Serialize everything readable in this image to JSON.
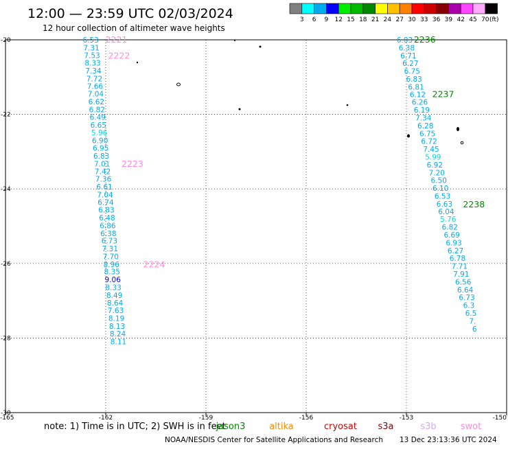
{
  "title": "12:00 — 23:59 UTC 02/03/2024",
  "subtitle": "12 hour collection of altimeter wave heights",
  "footer": {
    "note": "note:  1) Time is in UTC; 2) SWH is in feet",
    "credit": "NOAA/NESDIS Center for Satellite Applications and Research",
    "timestamp": "13 Dec 23:13:36 UTC 2024"
  },
  "colorbar": {
    "unit": "(ft)",
    "colors": [
      "#808080",
      "#00ffff",
      "#00aaee",
      "#0000ff",
      "#00ee00",
      "#00bb00",
      "#008800",
      "#ffff00",
      "#ffc000",
      "#ff8000",
      "#ff0000",
      "#cc0000",
      "#880000",
      "#aa00aa",
      "#ff44ff",
      "#ffaaff",
      "#000000"
    ],
    "labels": [
      "3",
      "6",
      "9",
      "12",
      "15",
      "18",
      "21",
      "24",
      "27",
      "30",
      "33",
      "36",
      "39",
      "42",
      "45",
      "70"
    ]
  },
  "satellites": [
    {
      "name": "jason3",
      "color": "#008800"
    },
    {
      "name": "altika",
      "color": "#ff8800"
    },
    {
      "name": "cryosat",
      "color": "#cc0000"
    },
    {
      "name": "s3a",
      "color": "#880000"
    },
    {
      "name": "s3b",
      "color": "#ccaaff"
    },
    {
      "name": "swot",
      "color": "#ff88dd"
    }
  ],
  "chart_data": {
    "type": "scatter",
    "title": "12:00 — 23:59 UTC 02/03/2024",
    "subtitle": "12 hour collection of altimeter wave heights",
    "xlim": [
      -165,
      -150
    ],
    "ylim": [
      -30,
      -20
    ],
    "xticks": [
      "-165",
      "-162",
      "-159",
      "-156",
      "-153",
      "-150"
    ],
    "yticks": [
      "-20",
      "-22",
      "-24",
      "-26",
      "-28",
      "-30"
    ],
    "xtick_values": [
      -165,
      -162,
      -159,
      -156,
      -153,
      -150
    ],
    "ytick_values": [
      -20,
      -22,
      -24,
      -26,
      -28,
      -30
    ],
    "grid": "dotted",
    "series": [
      {
        "name": "swot",
        "color": "#ff88dd",
        "points": [
          {
            "x": -162.45,
            "y": -20.0,
            "v": "6.53",
            "c": "#00aaee"
          },
          {
            "x": -162.43,
            "y": -20.21,
            "v": "7.31",
            "c": "#00aaee"
          },
          {
            "x": -162.41,
            "y": -20.41,
            "v": "7.53",
            "c": "#00aaee"
          },
          {
            "x": -162.39,
            "y": -20.62,
            "v": "8.33",
            "c": "#00aaee"
          },
          {
            "x": -162.37,
            "y": -20.83,
            "v": "7.34",
            "c": "#00aaee"
          },
          {
            "x": -162.34,
            "y": -21.04,
            "v": "7.72",
            "c": "#00aaee"
          },
          {
            "x": -162.32,
            "y": -21.24,
            "v": "7.66",
            "c": "#00aaee"
          },
          {
            "x": -162.3,
            "y": -21.45,
            "v": "7.04",
            "c": "#00aaee"
          },
          {
            "x": -162.28,
            "y": -21.66,
            "v": "6.62",
            "c": "#00aaee"
          },
          {
            "x": -162.26,
            "y": -21.87,
            "v": "6.82",
            "c": "#00aaee"
          },
          {
            "x": -162.24,
            "y": -22.07,
            "v": "6.49",
            "c": "#00aaee"
          },
          {
            "x": -162.22,
            "y": -22.28,
            "v": "6.65",
            "c": "#00aaee"
          },
          {
            "x": -162.19,
            "y": -22.49,
            "v": "5.96",
            "c": "#00dddd"
          },
          {
            "x": -162.17,
            "y": -22.7,
            "v": "6.90",
            "c": "#00aaee"
          },
          {
            "x": -162.15,
            "y": -22.9,
            "v": "6.95",
            "c": "#00aaee"
          },
          {
            "x": -162.13,
            "y": -23.11,
            "v": "6.83",
            "c": "#00aaee"
          },
          {
            "x": -162.11,
            "y": -23.32,
            "v": "7.01",
            "c": "#00aaee"
          },
          {
            "x": -162.09,
            "y": -23.53,
            "v": "7.42",
            "c": "#00aaee"
          },
          {
            "x": -162.07,
            "y": -23.73,
            "v": "7.36",
            "c": "#00aaee"
          },
          {
            "x": -162.04,
            "y": -23.94,
            "v": "6.61",
            "c": "#00aaee"
          },
          {
            "x": -162.02,
            "y": -24.15,
            "v": "7.04",
            "c": "#00aaee"
          },
          {
            "x": -162.0,
            "y": -24.36,
            "v": "6.74",
            "c": "#00aaee"
          },
          {
            "x": -161.98,
            "y": -24.56,
            "v": "6.83",
            "c": "#00aaee"
          },
          {
            "x": -161.96,
            "y": -24.77,
            "v": "6.48",
            "c": "#00aaee"
          },
          {
            "x": -161.94,
            "y": -24.98,
            "v": "6.86",
            "c": "#00aaee"
          },
          {
            "x": -161.92,
            "y": -25.19,
            "v": "6.38",
            "c": "#00aaee"
          },
          {
            "x": -161.89,
            "y": -25.39,
            "v": "6.73",
            "c": "#00aaee"
          },
          {
            "x": -161.87,
            "y": -25.6,
            "v": "7.31",
            "c": "#00aaee"
          },
          {
            "x": -161.85,
            "y": -25.81,
            "v": "7.70",
            "c": "#00aaee"
          },
          {
            "x": -161.83,
            "y": -26.02,
            "v": "8.96",
            "c": "#00aaee"
          },
          {
            "x": -161.81,
            "y": -26.22,
            "v": "8.35",
            "c": "#00aaee"
          },
          {
            "x": -161.79,
            "y": -26.43,
            "v": "9.06",
            "c": "#0000ff"
          },
          {
            "x": -161.77,
            "y": -26.64,
            "v": "8.33",
            "c": "#00aaee"
          },
          {
            "x": -161.74,
            "y": -26.85,
            "v": "8.49",
            "c": "#00aaee"
          },
          {
            "x": -161.72,
            "y": -27.05,
            "v": "8.64",
            "c": "#00aaee"
          },
          {
            "x": -161.7,
            "y": -27.26,
            "v": "7.63",
            "c": "#00aaee"
          },
          {
            "x": -161.68,
            "y": -27.47,
            "v": "8.19",
            "c": "#00aaee"
          },
          {
            "x": -161.66,
            "y": -27.68,
            "v": "8.13",
            "c": "#00aaee"
          },
          {
            "x": -161.64,
            "y": -27.88,
            "v": "8.24",
            "c": "#00aaee"
          },
          {
            "x": -161.62,
            "y": -28.09,
            "v": "8.11",
            "c": "#00aaee"
          }
        ]
      },
      {
        "name": "jason3",
        "color": "#008800",
        "points": [
          {
            "x": -153.05,
            "y": -20.0,
            "v": "6.03",
            "c": "#00aaee"
          },
          {
            "x": -152.99,
            "y": -20.21,
            "v": "6.38",
            "c": "#00aaee"
          },
          {
            "x": -152.94,
            "y": -20.42,
            "v": "6.71",
            "c": "#00aaee"
          },
          {
            "x": -152.88,
            "y": -20.63,
            "v": "6.27",
            "c": "#00aaee"
          },
          {
            "x": -152.83,
            "y": -20.84,
            "v": "6.75",
            "c": "#00aaee"
          },
          {
            "x": -152.77,
            "y": -21.05,
            "v": "6.83",
            "c": "#00aaee"
          },
          {
            "x": -152.71,
            "y": -21.26,
            "v": "6.81",
            "c": "#00aaee"
          },
          {
            "x": -152.66,
            "y": -21.46,
            "v": "6.12",
            "c": "#00aaee"
          },
          {
            "x": -152.6,
            "y": -21.67,
            "v": "6.26",
            "c": "#00aaee"
          },
          {
            "x": -152.54,
            "y": -21.88,
            "v": "6.19",
            "c": "#00aaee"
          },
          {
            "x": -152.49,
            "y": -22.09,
            "v": "7.34",
            "c": "#00aaee"
          },
          {
            "x": -152.43,
            "y": -22.3,
            "v": "6.28",
            "c": "#00aaee"
          },
          {
            "x": -152.37,
            "y": -22.51,
            "v": "6.75",
            "c": "#00aaee"
          },
          {
            "x": -152.32,
            "y": -22.72,
            "v": "6.72",
            "c": "#00aaee"
          },
          {
            "x": -152.26,
            "y": -22.93,
            "v": "7.45",
            "c": "#00aaee"
          },
          {
            "x": -152.2,
            "y": -23.14,
            "v": "5.99",
            "c": "#00dddd"
          },
          {
            "x": -152.15,
            "y": -23.35,
            "v": "6.92",
            "c": "#00aaee"
          },
          {
            "x": -152.09,
            "y": -23.56,
            "v": "7.20",
            "c": "#00aaee"
          },
          {
            "x": -152.03,
            "y": -23.77,
            "v": "6.50",
            "c": "#00aaee"
          },
          {
            "x": -151.98,
            "y": -23.98,
            "v": "6.10",
            "c": "#00aaee"
          },
          {
            "x": -151.92,
            "y": -24.19,
            "v": "6.53",
            "c": "#00aaee"
          },
          {
            "x": -151.86,
            "y": -24.4,
            "v": "6.63",
            "c": "#00aaee"
          },
          {
            "x": -151.81,
            "y": -24.6,
            "v": "6.04",
            "c": "#00aaee"
          },
          {
            "x": -151.75,
            "y": -24.81,
            "v": "5.76",
            "c": "#00dddd"
          },
          {
            "x": -151.7,
            "y": -25.02,
            "v": "6.82",
            "c": "#00aaee"
          },
          {
            "x": -151.64,
            "y": -25.23,
            "v": "6.69",
            "c": "#00aaee"
          },
          {
            "x": -151.58,
            "y": -25.44,
            "v": "6.93",
            "c": "#00aaee"
          },
          {
            "x": -151.53,
            "y": -25.65,
            "v": "6.27",
            "c": "#00aaee"
          },
          {
            "x": -151.47,
            "y": -25.86,
            "v": "6.78",
            "c": "#00aaee"
          },
          {
            "x": -151.41,
            "y": -26.07,
            "v": "7.71",
            "c": "#00aaee"
          },
          {
            "x": -151.36,
            "y": -26.28,
            "v": "7.91",
            "c": "#00aaee"
          },
          {
            "x": -151.3,
            "y": -26.49,
            "v": "6.56",
            "c": "#00aaee"
          },
          {
            "x": -151.24,
            "y": -26.7,
            "v": "6.64",
            "c": "#00aaee"
          },
          {
            "x": -151.19,
            "y": -26.91,
            "v": "6.73",
            "c": "#00aaee"
          },
          {
            "x": -151.13,
            "y": -27.12,
            "v": "6.3",
            "c": "#00aaee"
          },
          {
            "x": -151.07,
            "y": -27.33,
            "v": "6.5",
            "c": "#00aaee"
          },
          {
            "x": -151.02,
            "y": -27.54,
            "v": "7.",
            "c": "#00aaee"
          },
          {
            "x": -150.96,
            "y": -27.75,
            "v": "6",
            "c": "#00aaee"
          }
        ]
      }
    ],
    "annotations": [
      {
        "text": "2221",
        "color": "#ff88dd",
        "x": -161.68,
        "y": -20.0
      },
      {
        "text": "2222",
        "color": "#ff88dd",
        "x": -161.6,
        "y": -20.43
      },
      {
        "text": "2223",
        "color": "#ff88dd",
        "x": -161.2,
        "y": -23.33
      },
      {
        "text": "2224",
        "color": "#ff88dd",
        "x": -160.55,
        "y": -26.03
      },
      {
        "text": "2236",
        "color": "#008800",
        "x": -152.45,
        "y": -20.0
      },
      {
        "text": "2237",
        "color": "#008800",
        "x": -151.9,
        "y": -21.46
      },
      {
        "text": "2238",
        "color": "#008800",
        "x": -150.98,
        "y": -24.42
      }
    ]
  }
}
